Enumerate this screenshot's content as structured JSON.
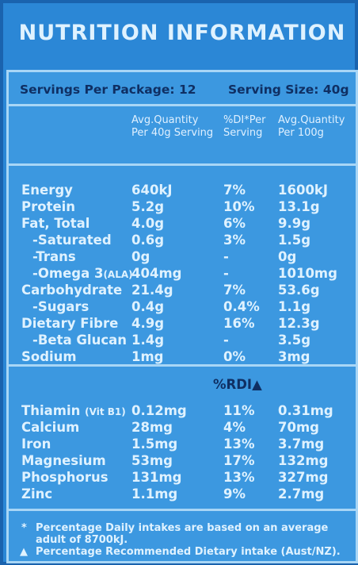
{
  "title": "NUTRITION INFORMATION",
  "servings_per_package": "Servings Per Package: 12",
  "serving_size": "Serving Size: 40g",
  "headers": {
    "col1_line1": "Avg.Quantity",
    "col1_line2": "Per 40g Serving",
    "col2_line1": "%DI*Per",
    "col2_line2": "Serving",
    "col3_line1": "Avg.Quantity",
    "col3_line2": "Per 100g"
  },
  "nutrients": [
    {
      "name": "Energy",
      "per_serving": "640kJ",
      "di": "7%",
      "per_100g": "1600kJ"
    },
    {
      "name": "Protein",
      "per_serving": "5.2g",
      "di": "10%",
      "per_100g": "13.1g"
    },
    {
      "name": "Fat, Total",
      "per_serving": "4.0g",
      "di": "6%",
      "per_100g": "9.9g"
    },
    {
      "name": "-Saturated",
      "per_serving": "0.6g",
      "di": "3%",
      "per_100g": "1.5g"
    },
    {
      "name": "-Trans",
      "per_serving": "0g",
      "di": "-",
      "per_100g": "0g"
    },
    {
      "name": "-Omega 3",
      "name_suffix": "(ALA)",
      "per_serving": "404mg",
      "di": "-",
      "per_100g": "1010mg"
    },
    {
      "name": "Carbohydrate",
      "per_serving": "21.4g",
      "di": "7%",
      "per_100g": "53.6g"
    },
    {
      "name": "-Sugars",
      "per_serving": "0.4g",
      "di": "0.4%",
      "per_100g": "1.1g"
    },
    {
      "name": "Dietary Fibre",
      "per_serving": "4.9g",
      "di": "16%",
      "per_100g": "12.3g"
    },
    {
      "name": "-Beta Glucan",
      "per_serving": "1.4g",
      "di": "-",
      "per_100g": "3.5g"
    },
    {
      "name": "Sodium",
      "per_serving": "1mg",
      "di": "0%",
      "per_100g": "3mg"
    }
  ],
  "rdi_header": "%RDI▲",
  "minerals": [
    {
      "name": "Thiamin",
      "name_suffix": "(Vit B1)",
      "per_serving": "0.12mg",
      "rdi": "11%",
      "per_100g": "0.31mg"
    },
    {
      "name": "Calcium",
      "per_serving": "28mg",
      "rdi": "4%",
      "per_100g": "70mg"
    },
    {
      "name": "Iron",
      "per_serving": "1.5mg",
      "rdi": "13%",
      "per_100g": "3.7mg"
    },
    {
      "name": "Magnesium",
      "per_serving": "53mg",
      "rdi": "17%",
      "per_100g": "132mg"
    },
    {
      "name": "Phosphorus",
      "per_serving": "131mg",
      "rdi": "13%",
      "per_100g": "327mg"
    },
    {
      "name": "Zinc",
      "per_serving": "1.1mg",
      "rdi": "9%",
      "per_100g": "2.7mg"
    }
  ],
  "footnotes": {
    "di_mark": "*",
    "di_text_1": "Percentage Daily intakes are based on an average",
    "di_text_2": "adult of 8700kJ.",
    "rdi_mark": "▲",
    "rdi_text": "Percentage Recommended Dietary intake (Aust/NZ)."
  },
  "colors": {
    "background": "#2b87d6",
    "text_light": "#dff2ff",
    "text_dark": "#0f2f63",
    "border": "#a8d6f6"
  }
}
